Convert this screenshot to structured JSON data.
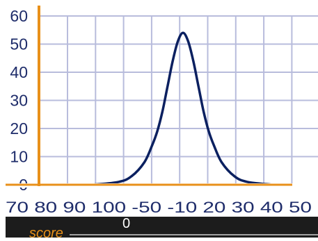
{
  "chart_data": {
    "type": "line",
    "title": "",
    "xlabel": "score",
    "ylabel": "",
    "y_ticks": [
      "0",
      "10",
      "20",
      "30",
      "40",
      "50",
      "60"
    ],
    "x_tick_text": "70 80 90 100 -50 -10 20 30 40 50",
    "x_extra_label": "0",
    "ylim": [
      0,
      60
    ],
    "grid": true,
    "series": [
      {
        "values_x": [
          -3.5,
          -2.5,
          -2.0,
          -1.5,
          -1.2,
          -1.0,
          -0.8,
          -0.6,
          -0.4,
          -0.2,
          0.0,
          0.2,
          0.4,
          0.6,
          0.8,
          1.0,
          1.2,
          1.5,
          2.0,
          2.5,
          3.5
        ],
        "values": [
          0,
          1,
          3,
          8,
          14,
          19,
          26,
          35,
          44,
          51,
          54,
          51,
          44,
          35,
          26,
          19,
          14,
          8,
          3,
          1,
          0
        ]
      }
    ],
    "colors": {
      "axis": "#e8901a",
      "line": "#0b2060",
      "grid": "#b8bcdc",
      "tick_text": "#1e2c6a",
      "xlabel": "#e8901a",
      "bottom_band": "#1c1c1c"
    }
  }
}
